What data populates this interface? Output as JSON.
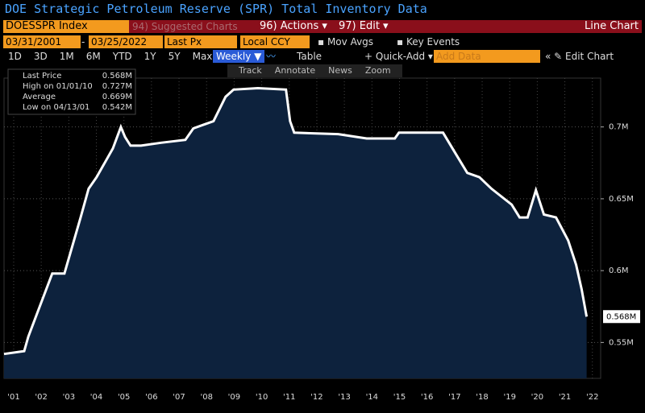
{
  "ui": {
    "title": "DOE Strategic Petroleum Reserve (SPR) Total Inventory Data",
    "ticker": "DOESSPR Index",
    "menu": [
      "94) Suggested Charts",
      "96) Actions ▾",
      "97) Edit ▾"
    ],
    "chart_kind": "Line Chart",
    "start_date": "03/31/2001",
    "end_date": "03/25/2022",
    "field": "Last Px",
    "currency": "Local CCY",
    "toggles": [
      "Mov Avgs",
      "Key Events"
    ],
    "periods": [
      "1D",
      "3D",
      "1M",
      "6M",
      "YTD",
      "1Y",
      "5Y",
      "Max"
    ],
    "frequency": "Weekly ▼",
    "table": "Table",
    "quick_add": "+ Quick-Add ▾",
    "add_data": "Add Data",
    "edit_chart": "« ✎ Edit Chart",
    "tools": [
      "Track",
      "Annotate",
      "News",
      "Zoom"
    ]
  },
  "chart_data": {
    "type": "area",
    "x": [
      2001.15,
      2001.88,
      2002.03,
      2002.9,
      2003.34,
      2003.93,
      2004.22,
      2004.51,
      2005.1,
      2005.39,
      2005.54,
      2005.74,
      2006.12,
      2006.85,
      2007.73,
      2008.02,
      2008.75,
      2009.19,
      2009.48,
      2010.36,
      2011.38,
      2011.53,
      2011.68,
      2013.28,
      2014.31,
      2015.33,
      2015.48,
      2017.08,
      2017.52,
      2017.96,
      2018.4,
      2018.84,
      2019.57,
      2019.86,
      2020.15,
      2020.45,
      2020.74,
      2021.18,
      2021.62,
      2021.91,
      2022.11,
      2022.29
    ],
    "series": [
      {
        "name": "Last Price",
        "color": "#ffffff",
        "fill": "#0d223d",
        "values": [
          0.542,
          0.544,
          0.554,
          0.598,
          0.598,
          0.637,
          0.657,
          0.665,
          0.685,
          0.7,
          0.693,
          0.687,
          0.687,
          0.689,
          0.691,
          0.699,
          0.704,
          0.721,
          0.726,
          0.727,
          0.726,
          0.704,
          0.696,
          0.695,
          0.692,
          0.692,
          0.696,
          0.696,
          0.682,
          0.668,
          0.665,
          0.657,
          0.646,
          0.637,
          0.637,
          0.656,
          0.639,
          0.637,
          0.621,
          0.604,
          0.587,
          0.568
        ]
      }
    ],
    "last_value": "0.568M",
    "stats": [
      {
        "label": "High on 01/01/10",
        "value": "0.727M"
      },
      {
        "label": "Average",
        "value": "0.669M"
      },
      {
        "label": "Low on 04/13/01",
        "value": "0.542M"
      }
    ],
    "xlim": [
      2001.15,
      2022.8
    ],
    "xticks": [
      {
        "value": 2001.5,
        "label": "'01"
      },
      {
        "value": 2002.5,
        "label": "'02"
      },
      {
        "value": 2003.5,
        "label": "'03"
      },
      {
        "value": 2004.5,
        "label": "'04"
      },
      {
        "value": 2005.5,
        "label": "'05"
      },
      {
        "value": 2006.5,
        "label": "'06"
      },
      {
        "value": 2007.5,
        "label": "'07"
      },
      {
        "value": 2008.5,
        "label": "'08"
      },
      {
        "value": 2009.5,
        "label": "'09"
      },
      {
        "value": 2010.5,
        "label": "'10"
      },
      {
        "value": 2011.5,
        "label": "'11"
      },
      {
        "value": 2012.5,
        "label": "'12"
      },
      {
        "value": 2013.5,
        "label": "'13"
      },
      {
        "value": 2014.5,
        "label": "'14"
      },
      {
        "value": 2015.5,
        "label": "'15"
      },
      {
        "value": 2016.5,
        "label": "'16"
      },
      {
        "value": 2017.5,
        "label": "'17"
      },
      {
        "value": 2018.5,
        "label": "'18"
      },
      {
        "value": 2019.5,
        "label": "'19"
      },
      {
        "value": 2020.5,
        "label": "'20"
      },
      {
        "value": 2021.5,
        "label": "'21"
      },
      {
        "value": 2022.5,
        "label": "'22"
      }
    ],
    "ylim": [
      0.525,
      0.734
    ],
    "yticks": [
      {
        "value": 0.55,
        "label": "0.55M"
      },
      {
        "value": 0.6,
        "label": "0.6M"
      },
      {
        "value": 0.65,
        "label": "0.65M"
      },
      {
        "value": 0.7,
        "label": "0.7M"
      }
    ],
    "grid": true
  }
}
